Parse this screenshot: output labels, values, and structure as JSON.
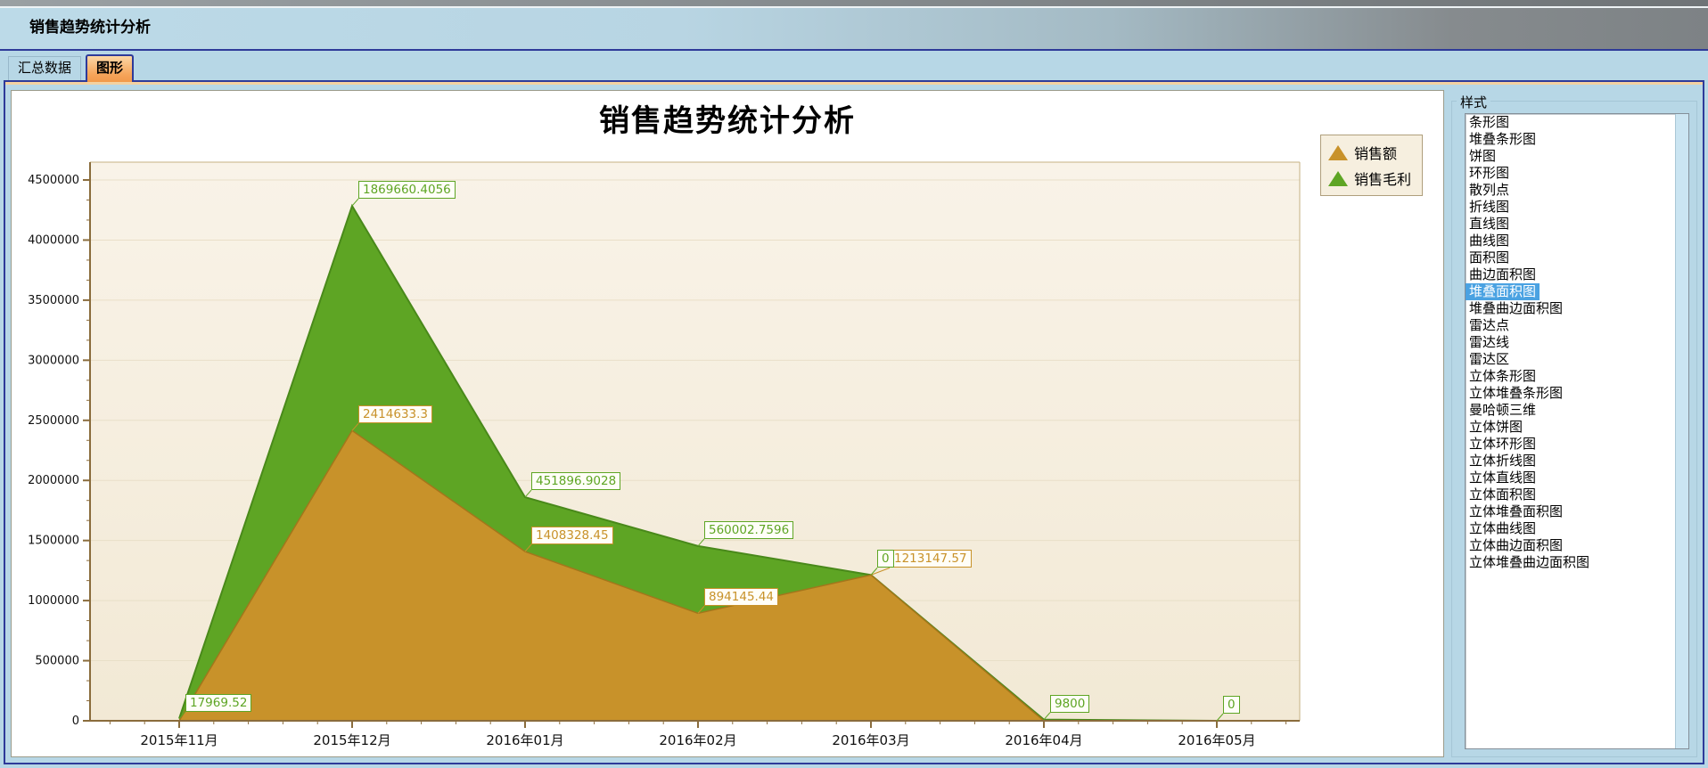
{
  "window": {
    "title": "销售趋势统计分析"
  },
  "tabs": [
    {
      "label": "汇总数据",
      "active": false
    },
    {
      "label": "图形",
      "active": true
    }
  ],
  "style_panel": {
    "title": "样式",
    "selected_index": 10,
    "items": [
      "条形图",
      "堆叠条形图",
      "饼图",
      "环形图",
      "散列点",
      "折线图",
      "直线图",
      "曲线图",
      "面积图",
      "曲边面积图",
      "堆叠面积图",
      "堆叠曲边面积图",
      "雷达点",
      "雷达线",
      "雷达区",
      "立体条形图",
      "立体堆叠条形图",
      "曼哈顿三维",
      "立体饼图",
      "立体环形图",
      "立体折线图",
      "立体直线图",
      "立体面积图",
      "立体堆叠面积图",
      "立体曲线图",
      "立体曲边面积图",
      "立体堆叠曲边面积图"
    ]
  },
  "chart_data": {
    "type": "area",
    "stacked": true,
    "title": "销售趋势统计分析",
    "categories": [
      "2015年11月",
      "2015年12月",
      "2016年01月",
      "2016年02月",
      "2016年03月",
      "2016年04月",
      "2016年05月"
    ],
    "series": [
      {
        "name": "销售额",
        "color": "#c8922a",
        "edge": "#a3761b",
        "values": [
          0,
          2414633.3,
          1408328.45,
          894145.44,
          1213147.57,
          0,
          0
        ]
      },
      {
        "name": "销售毛利",
        "color": "#5ea524",
        "edge": "#49891a",
        "values": [
          17969.52,
          1869660.4056,
          451896.9028,
          560002.7596,
          0,
          9800,
          0
        ]
      }
    ],
    "point_labels": [
      {
        "series": 1,
        "index": 0,
        "text": "17969.52"
      },
      {
        "series": 0,
        "index": 1,
        "text": "2414633.3"
      },
      {
        "series": 1,
        "index": 1,
        "text": "1869660.4056"
      },
      {
        "series": 0,
        "index": 2,
        "text": "1408328.45"
      },
      {
        "series": 1,
        "index": 2,
        "text": "451896.9028"
      },
      {
        "series": 0,
        "index": 3,
        "text": "894145.44"
      },
      {
        "series": 1,
        "index": 3,
        "text": "560002.7596"
      },
      {
        "series": 0,
        "index": 4,
        "text": "1213147.57",
        "dx": 14
      },
      {
        "series": 1,
        "index": 4,
        "text": "0"
      },
      {
        "series": 1,
        "index": 5,
        "text": "9800"
      },
      {
        "series": 1,
        "index": 6,
        "text": "0"
      }
    ],
    "ylim": [
      0,
      4500000
    ],
    "ytick_step": 500000,
    "grid": "horizontal",
    "legend_position": "top-right",
    "plot_bg": "#f6efe0"
  },
  "colors": {
    "accent_navy": "#2e3a99",
    "tab_active_orange": "#f6a55b",
    "selection_blue": "#4aa2e2",
    "window_blue": "#b7d7e6",
    "axis_brown": "#8a6c3c",
    "gridline": "#e9dfc8"
  }
}
